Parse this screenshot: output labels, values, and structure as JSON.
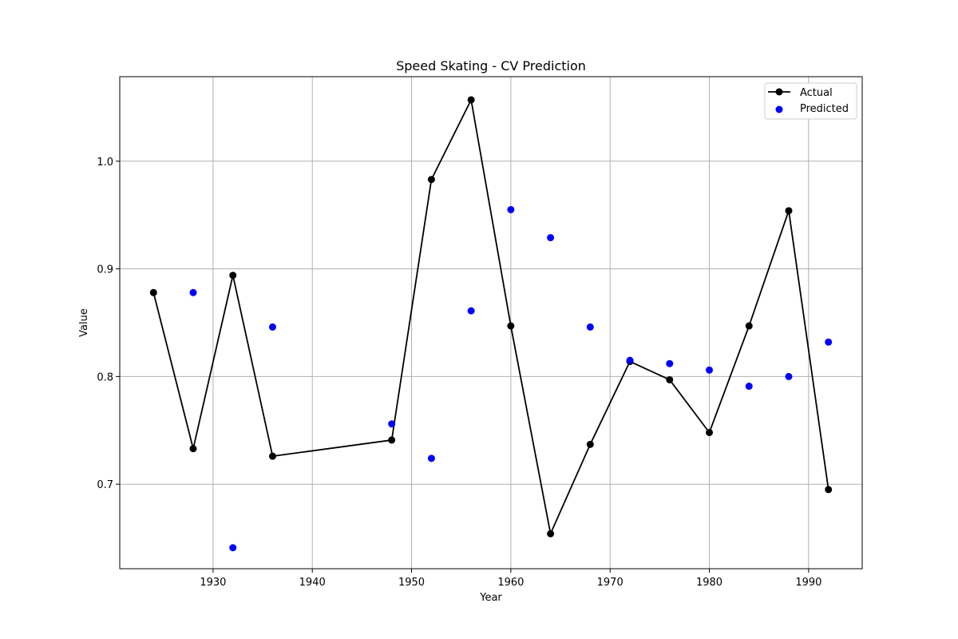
{
  "chart_data": {
    "type": "line",
    "title": "Speed Skating - CV Prediction",
    "xlabel": "Year",
    "ylabel": "Value",
    "xlim": [
      1920.6,
      1995.4
    ],
    "ylim": [
      0.6215,
      1.0785
    ],
    "xticks": [
      1930,
      1940,
      1950,
      1960,
      1970,
      1980,
      1990
    ],
    "yticks": [
      0.7,
      0.8,
      0.9,
      1.0
    ],
    "ytick_labels": [
      "0.7",
      "0.8",
      "0.9",
      "1.0"
    ],
    "grid": true,
    "legend_position": "top-right",
    "series": [
      {
        "name": "Actual",
        "kind": "line-marker",
        "color": "#000000",
        "x": [
          1924,
          1928,
          1932,
          1936,
          1948,
          1952,
          1956,
          1960,
          1964,
          1968,
          1972,
          1976,
          1980,
          1984,
          1988,
          1992
        ],
        "y": [
          0.878,
          0.733,
          0.894,
          0.726,
          0.741,
          0.983,
          1.057,
          0.847,
          0.654,
          0.737,
          0.814,
          0.797,
          0.748,
          0.847,
          0.954,
          0.695
        ]
      },
      {
        "name": "Predicted",
        "kind": "scatter",
        "color": "#0000ff",
        "x": [
          1928,
          1932,
          1936,
          1948,
          1952,
          1956,
          1960,
          1964,
          1968,
          1972,
          1976,
          1980,
          1984,
          1988,
          1992
        ],
        "y": [
          0.878,
          0.641,
          0.846,
          0.756,
          0.724,
          0.861,
          0.955,
          0.929,
          0.846,
          0.815,
          0.812,
          0.806,
          0.791,
          0.8,
          0.832
        ]
      }
    ]
  }
}
